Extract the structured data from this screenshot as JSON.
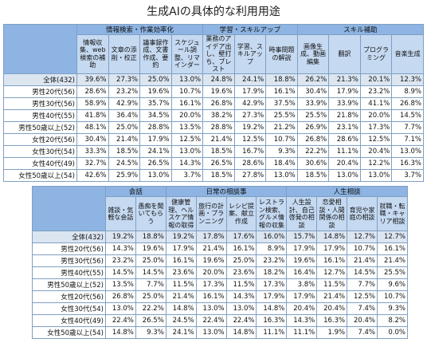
{
  "title": "生成AIの具体的な利用用途",
  "tables": [
    {
      "groups": [
        {
          "label": "情報検索・作業効率化",
          "columns": [
            "情報収集、web検索の補助",
            "文章の添削・校正",
            "議事録作成、文書作成、要約",
            "スケジュール調整、リマインダー"
          ]
        },
        {
          "label": "学習・スキルアップ",
          "columns": [
            "業務のアイデア出し、壁打ち、ブレスト",
            "学習、スキルアップ",
            "時事問題の解説"
          ]
        },
        {
          "label": "スキル補助",
          "columns": [
            "画像生成、動画編集",
            "翻訳",
            "プログラミング",
            "音楽生成"
          ]
        }
      ],
      "rows": [
        {
          "label": "全体(432)",
          "values": [
            "39.6%",
            "27.3%",
            "25.0%",
            "13.0%",
            "24.8%",
            "24.1%",
            "18.8%",
            "26.2%",
            "21.3%",
            "20.1%",
            "12.3%"
          ]
        },
        {
          "label": "男性20代(56)",
          "values": [
            "28.6%",
            "23.2%",
            "19.6%",
            "10.7%",
            "19.6%",
            "17.9%",
            "16.1%",
            "30.4%",
            "17.9%",
            "23.2%",
            "8.9%"
          ]
        },
        {
          "label": "男性30代(56)",
          "values": [
            "58.9%",
            "42.9%",
            "35.7%",
            "16.1%",
            "26.8%",
            "42.9%",
            "37.5%",
            "33.9%",
            "33.9%",
            "41.1%",
            "26.8%"
          ]
        },
        {
          "label": "男性40代(55)",
          "values": [
            "41.8%",
            "36.4%",
            "34.5%",
            "20.0%",
            "38.2%",
            "27.3%",
            "25.5%",
            "25.5%",
            "21.8%",
            "20.0%",
            "14.5%"
          ]
        },
        {
          "label": "男性50歳以上(52)",
          "values": [
            "48.1%",
            "25.0%",
            "28.8%",
            "13.5%",
            "28.8%",
            "19.2%",
            "21.2%",
            "26.9%",
            "23.1%",
            "17.3%",
            "7.7%"
          ]
        },
        {
          "label": "女性20代(56)",
          "values": [
            "30.4%",
            "21.4%",
            "17.9%",
            "12.5%",
            "21.4%",
            "12.5%",
            "10.7%",
            "26.8%",
            "28.6%",
            "12.5%",
            "7.1%"
          ]
        },
        {
          "label": "女性30代(54)",
          "values": [
            "33.3%",
            "18.5%",
            "24.1%",
            "13.0%",
            "18.5%",
            "16.7%",
            "9.3%",
            "22.2%",
            "11.1%",
            "20.4%",
            "13.0%"
          ]
        },
        {
          "label": "女性40代(49)",
          "values": [
            "32.7%",
            "24.5%",
            "26.5%",
            "14.3%",
            "26.5%",
            "28.6%",
            "18.4%",
            "30.6%",
            "20.4%",
            "12.2%",
            "16.3%"
          ]
        },
        {
          "label": "女性50歳以上(54)",
          "values": [
            "42.6%",
            "25.9%",
            "13.0%",
            "3.7%",
            "18.5%",
            "27.8%",
            "13.0%",
            "18.5%",
            "13.0%",
            "13.0%",
            "3.7%"
          ]
        }
      ]
    },
    {
      "groups": [
        {
          "label": "会話",
          "columns": [
            "雑談・気軽な会話",
            "愚痴を聞いてもらう"
          ]
        },
        {
          "label": "日常の相談事",
          "columns": [
            "健康管理、ヘルスケア情報の取得",
            "旅行の計画・プランニング",
            "レシピ提案、献立作成",
            "レストラン検索、グルメ情報の収集"
          ]
        },
        {
          "label": "人生相談",
          "columns": [
            "人生設計、自己啓発の相談",
            "恋愛相談・人間関係の相談",
            "育児や家庭の相談",
            "就職・転職・キャリア相談"
          ]
        }
      ],
      "rows": [
        {
          "label": "全体(432)",
          "values": [
            "19.2%",
            "18.8%",
            "19.2%",
            "17.8%",
            "17.6%",
            "16.0%",
            "15.7%",
            "14.8%",
            "12.7%",
            "12.7%"
          ]
        },
        {
          "label": "男性20代(56)",
          "values": [
            "14.3%",
            "19.6%",
            "17.9%",
            "21.4%",
            "16.1%",
            "8.9%",
            "17.9%",
            "17.9%",
            "10.7%",
            "16.1%"
          ]
        },
        {
          "label": "男性30代(56)",
          "values": [
            "23.2%",
            "25.0%",
            "16.1%",
            "19.6%",
            "25.0%",
            "23.2%",
            "19.6%",
            "16.1%",
            "21.4%",
            "21.4%"
          ]
        },
        {
          "label": "男性40代(55)",
          "values": [
            "14.5%",
            "14.5%",
            "23.6%",
            "20.0%",
            "23.6%",
            "18.2%",
            "16.4%",
            "12.7%",
            "14.5%",
            "25.5%"
          ]
        },
        {
          "label": "男性50歳以上(52)",
          "values": [
            "13.5%",
            "7.7%",
            "11.5%",
            "17.3%",
            "11.5%",
            "17.3%",
            "3.8%",
            "11.5%",
            "7.7%",
            "9.6%"
          ]
        },
        {
          "label": "女性20代(56)",
          "values": [
            "26.8%",
            "25.0%",
            "21.4%",
            "16.1%",
            "14.3%",
            "17.9%",
            "17.9%",
            "21.4%",
            "12.5%",
            "10.7%"
          ]
        },
        {
          "label": "女性30代(54)",
          "values": [
            "13.0%",
            "22.2%",
            "14.8%",
            "13.0%",
            "13.0%",
            "14.8%",
            "20.4%",
            "20.4%",
            "7.4%",
            "9.3%"
          ]
        },
        {
          "label": "女性40代(49)",
          "values": [
            "22.4%",
            "26.5%",
            "24.5%",
            "22.4%",
            "22.4%",
            "16.3%",
            "14.3%",
            "16.3%",
            "20.4%",
            "8.2%"
          ]
        },
        {
          "label": "女性50歳以上(54)",
          "values": [
            "14.8%",
            "9.3%",
            "24.1%",
            "13.0%",
            "14.8%",
            "11.1%",
            "11.1%",
            "1.9%",
            "7.4%",
            "0.0%"
          ]
        }
      ]
    }
  ]
}
